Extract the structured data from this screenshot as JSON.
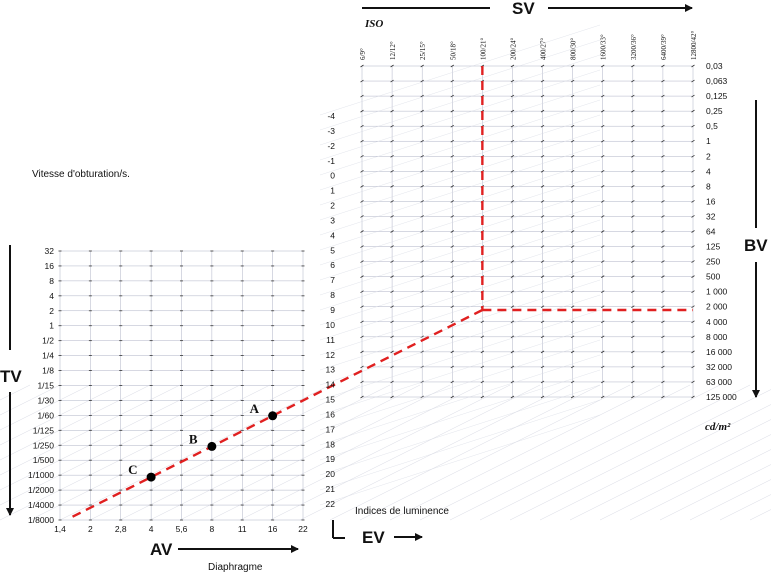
{
  "labels": {
    "tv": "TV",
    "av": "AV",
    "ev": "EV",
    "sv": "SV",
    "bv": "BV",
    "iso": "ISO",
    "shutter": "Vitesse d'obturation/s.",
    "aperture": "Diaphragme",
    "luminance": "Indices de luminence",
    "unit": "cd/m²"
  },
  "tv_values": [
    "32",
    "16",
    "8",
    "4",
    "2",
    "1",
    "1/2",
    "1/4",
    "1/8",
    "1/15",
    "1/30",
    "1/60",
    "1/125",
    "1/250",
    "1/500",
    "1/1000",
    "1/2000",
    "1/4000",
    "1/8000"
  ],
  "av_values": [
    "1,4",
    "2",
    "2,8",
    "4",
    "5,6",
    "8",
    "11",
    "16",
    "22"
  ],
  "ev_values": [
    "-4",
    "-3",
    "-2",
    "-1",
    "0",
    "1",
    "2",
    "3",
    "4",
    "5",
    "6",
    "7",
    "8",
    "9",
    "10",
    "11",
    "12",
    "13",
    "14",
    "15",
    "16",
    "17",
    "18",
    "19",
    "20",
    "21",
    "22"
  ],
  "iso_values": [
    "6/9°",
    "12/12°",
    "25/15°",
    "50/18°",
    "100/21°",
    "200/24°",
    "400/27°",
    "800/30°",
    "1600/33°",
    "3200/36°",
    "6400/39°",
    "12800/42°"
  ],
  "bv_values": [
    "0,03",
    "0,063",
    "0,125",
    "0,25",
    "0,5",
    "1",
    "2",
    "4",
    "8",
    "16",
    "32",
    "64",
    "125",
    "250",
    "500",
    "1 000",
    "2 000",
    "4 000",
    "8 000",
    "16 000",
    "32 000",
    "63 000",
    "125 000"
  ],
  "points": [
    {
      "label": "A",
      "aperture": "16",
      "shutter": "1/60"
    },
    {
      "label": "B",
      "aperture": "8",
      "shutter": "1/250"
    },
    {
      "label": "C",
      "aperture": "4",
      "shutter": "1/1000"
    }
  ],
  "colors": {
    "dashed_line": "#e02020",
    "grid": "#9aa0b8",
    "text": "#111111"
  }
}
